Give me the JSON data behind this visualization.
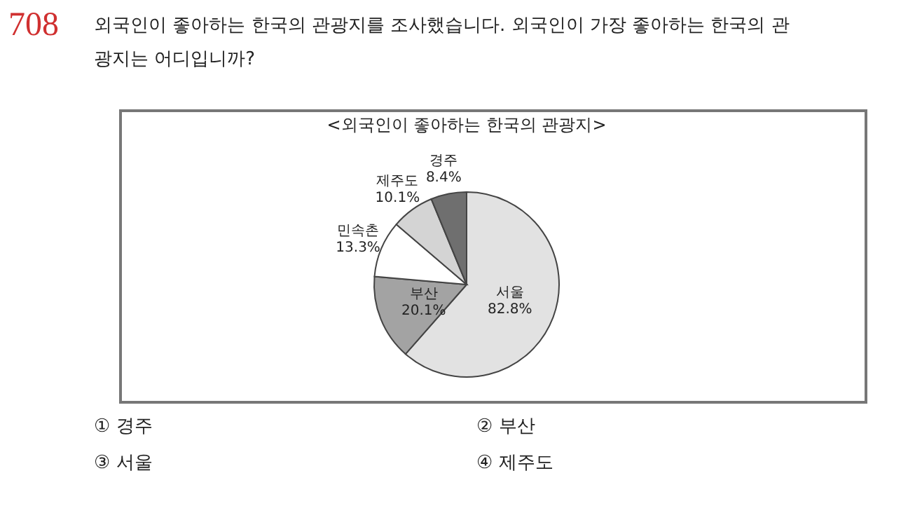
{
  "chart_data": {
    "type": "pie",
    "title": "<외국인이 좋아하는 한국의 관광지>",
    "categories": [
      "서울",
      "부산",
      "민속촌",
      "제주도",
      "경주"
    ],
    "values": [
      82.8,
      20.1,
      13.3,
      10.1,
      8.4
    ],
    "value_labels": [
      "82.8%",
      "20.1%",
      "13.3%",
      "10.1%",
      "8.4%"
    ],
    "colors": [
      "#e2e2e2",
      "#a3a3a3",
      "#ffffff",
      "#d4d4d4",
      "#6f6f6f"
    ],
    "annotations": [
      "708",
      "외국인이 좋아하는 한국의 관광지를 조사했습니다. 외국인이 가장 좋아하는 한국의 관",
      "광지는 어디입니까?",
      "① 경주",
      "② 부산",
      "③ 서울",
      "④ 제주도"
    ]
  }
}
